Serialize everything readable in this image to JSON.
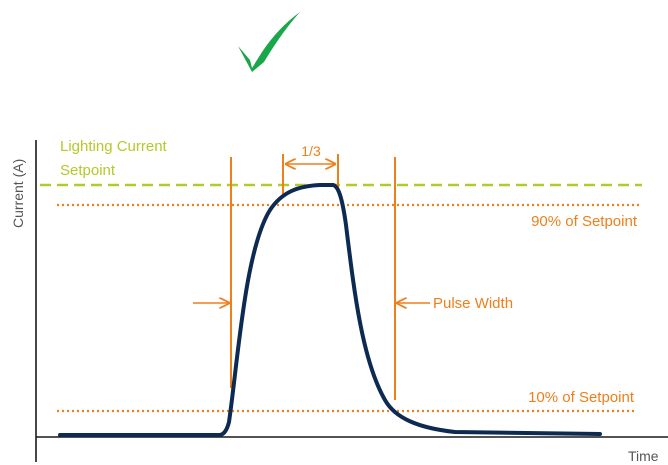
{
  "check_mark": {
    "icon": "checkmark-icon",
    "color": "#1aa64a"
  },
  "axes": {
    "y_label": "Current (A)",
    "x_label": "Time",
    "color": "#1a1a1a",
    "label_color": "#555555"
  },
  "setpoint": {
    "label_line1": "Lighting Current",
    "label_line2": "Setpoint",
    "color": "#b5c928"
  },
  "threshold_high": {
    "label": "90% of Setpoint",
    "color": "#ef7f1a"
  },
  "threshold_low": {
    "label": "10% of Setpoint",
    "color": "#ef7f1a"
  },
  "top_width_label": "1/3",
  "pulse_width_label": "Pulse Width",
  "marker_color": "#ef7f1a",
  "pulse_color": "#0d2a52"
}
